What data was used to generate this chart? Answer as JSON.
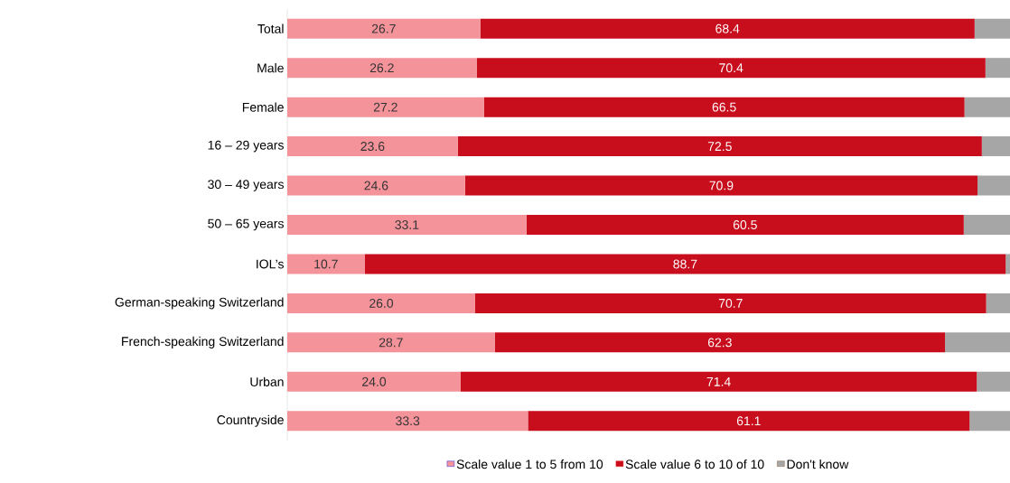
{
  "chart_data": {
    "type": "bar",
    "orientation": "horizontal",
    "stacked": true,
    "legend": "bottom",
    "xlim": [
      0,
      100
    ],
    "tick_labels": "y",
    "categories": [
      "Total",
      "Male",
      "Female",
      "16 – 29 years",
      "30 – 49 years",
      "50 – 65 years",
      "IOL’s",
      "German-speaking Switzerland",
      "French-speaking Switzerland",
      "Urban",
      "Countryside"
    ],
    "series": [
      {
        "name": "Scale value 1 to 5 from 10",
        "color": "#f4939a",
        "values": [
          26.7,
          26.2,
          27.2,
          23.6,
          24.6,
          33.1,
          10.7,
          26.0,
          28.7,
          24.0,
          33.3
        ],
        "value_labels": [
          "26.7",
          "26.2",
          "27.2",
          "23.6",
          "24.6",
          "33.1",
          "10.7",
          "26.0",
          "28.7",
          "24.0",
          "33.3"
        ]
      },
      {
        "name": "Scale value 6 to 10 of 10",
        "color": "#c80d1c",
        "values": [
          68.4,
          70.4,
          66.5,
          72.5,
          70.9,
          60.5,
          88.7,
          70.7,
          62.3,
          71.4,
          61.1
        ],
        "value_labels": [
          "68.4",
          "70.4",
          "66.5",
          "72.5",
          "70.9",
          "60.5",
          "88.7",
          "70.7",
          "62.3",
          "71.4",
          "61.1"
        ]
      },
      {
        "name": "Don't know",
        "color": "#a6a6a6",
        "values": [
          4.9,
          3.4,
          6.3,
          3.9,
          4.5,
          6.4,
          0.6,
          3.3,
          9.0,
          4.6,
          5.6
        ]
      }
    ]
  }
}
